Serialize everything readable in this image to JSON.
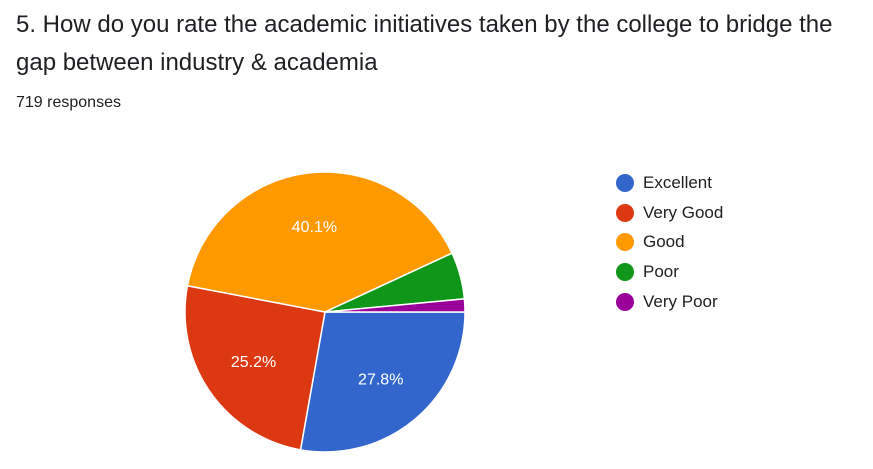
{
  "question": {
    "title": "5. How do you rate the academic initiatives taken by the college to bridge the gap between industry & academia",
    "responses": "719 responses"
  },
  "chart_data": {
    "type": "pie",
    "title": "5. How do you rate the academic initiatives taken by the college to bridge the gap between industry & academia",
    "total_responses": 719,
    "slices": [
      {
        "label": "Excellent",
        "percent": 27.8,
        "color": "#3366cc",
        "data_label": "27.8%"
      },
      {
        "label": "Very Good",
        "percent": 25.2,
        "color": "#dc3912",
        "data_label": "25.2%"
      },
      {
        "label": "Good",
        "percent": 40.1,
        "color": "#ff9900",
        "data_label": "40.1%"
      },
      {
        "label": "Poor",
        "percent": 5.4,
        "color": "#109618",
        "data_label": ""
      },
      {
        "label": "Very Poor",
        "percent": 1.5,
        "color": "#990099",
        "data_label": ""
      }
    ],
    "legend_position": "right"
  }
}
